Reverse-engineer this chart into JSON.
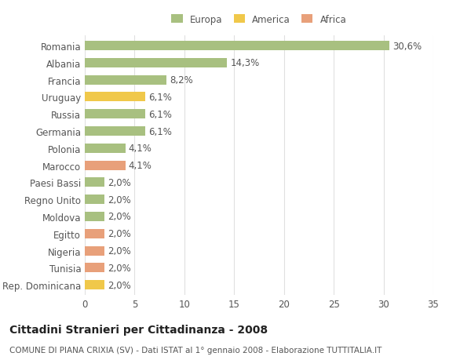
{
  "categories": [
    "Romania",
    "Albania",
    "Francia",
    "Uruguay",
    "Russia",
    "Germania",
    "Polonia",
    "Marocco",
    "Paesi Bassi",
    "Regno Unito",
    "Moldova",
    "Egitto",
    "Nigeria",
    "Tunisia",
    "Rep. Dominicana"
  ],
  "values": [
    30.6,
    14.3,
    8.2,
    6.1,
    6.1,
    6.1,
    4.1,
    4.1,
    2.0,
    2.0,
    2.0,
    2.0,
    2.0,
    2.0,
    2.0
  ],
  "labels": [
    "30,6%",
    "14,3%",
    "8,2%",
    "6,1%",
    "6,1%",
    "6,1%",
    "4,1%",
    "4,1%",
    "2,0%",
    "2,0%",
    "2,0%",
    "2,0%",
    "2,0%",
    "2,0%",
    "2,0%"
  ],
  "colors": [
    "#a8c080",
    "#a8c080",
    "#a8c080",
    "#f0c84a",
    "#a8c080",
    "#a8c080",
    "#a8c080",
    "#e8a07a",
    "#a8c080",
    "#a8c080",
    "#a8c080",
    "#e8a07a",
    "#e8a07a",
    "#e8a07a",
    "#f0c84a"
  ],
  "legend_labels": [
    "Europa",
    "America",
    "Africa"
  ],
  "legend_colors": [
    "#a8c080",
    "#f0c84a",
    "#e8a07a"
  ],
  "xlim": [
    0,
    35
  ],
  "xticks": [
    0,
    5,
    10,
    15,
    20,
    25,
    30,
    35
  ],
  "title": "Cittadini Stranieri per Cittadinanza - 2008",
  "subtitle": "COMUNE DI PIANA CRIXIA (SV) - Dati ISTAT al 1° gennaio 2008 - Elaborazione TUTTITALIA.IT",
  "background_color": "#ffffff",
  "grid_color": "#e0e0e0",
  "bar_height": 0.55,
  "label_fontsize": 8.5,
  "tick_fontsize": 8.5,
  "title_fontsize": 10,
  "subtitle_fontsize": 7.5
}
